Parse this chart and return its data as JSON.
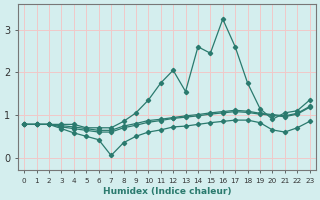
{
  "xlabel": "Humidex (Indice chaleur)",
  "ylabel": "",
  "background_color": "#d4eeee",
  "grid_color": "#f0c8c8",
  "line_color": "#2a7a6e",
  "xlim": [
    -0.5,
    23.5
  ],
  "ylim": [
    -0.3,
    3.6
  ],
  "x": [
    0,
    1,
    2,
    3,
    4,
    5,
    6,
    7,
    8,
    9,
    10,
    11,
    12,
    13,
    14,
    15,
    16,
    17,
    18,
    19,
    20,
    21,
    22,
    23
  ],
  "line1": [
    0.78,
    0.78,
    0.78,
    0.78,
    0.78,
    0.7,
    0.7,
    0.7,
    0.85,
    1.05,
    1.35,
    1.75,
    2.05,
    1.55,
    2.6,
    2.45,
    3.25,
    2.6,
    1.75,
    1.15,
    0.9,
    1.05,
    1.1,
    1.35
  ],
  "line2": [
    0.78,
    0.78,
    0.78,
    0.72,
    0.68,
    0.64,
    0.6,
    0.6,
    0.7,
    0.76,
    0.83,
    0.87,
    0.92,
    0.95,
    0.98,
    1.02,
    1.05,
    1.08,
    1.06,
    1.02,
    0.99,
    0.96,
    1.02,
    1.18
  ],
  "line3": [
    0.78,
    0.78,
    0.78,
    0.75,
    0.72,
    0.68,
    0.64,
    0.64,
    0.74,
    0.8,
    0.87,
    0.9,
    0.94,
    0.98,
    1.01,
    1.05,
    1.08,
    1.11,
    1.09,
    1.04,
    1.01,
    0.98,
    1.04,
    1.2
  ],
  "line4": [
    0.78,
    0.78,
    0.78,
    0.68,
    0.58,
    0.5,
    0.42,
    0.05,
    0.35,
    0.5,
    0.6,
    0.65,
    0.72,
    0.74,
    0.78,
    0.82,
    0.85,
    0.88,
    0.88,
    0.82,
    0.65,
    0.6,
    0.7,
    0.85
  ],
  "xticks": [
    0,
    1,
    2,
    3,
    4,
    5,
    6,
    7,
    8,
    9,
    10,
    11,
    12,
    13,
    14,
    15,
    16,
    17,
    18,
    19,
    20,
    21,
    22,
    23
  ],
  "yticks": [
    0,
    1,
    2,
    3
  ]
}
